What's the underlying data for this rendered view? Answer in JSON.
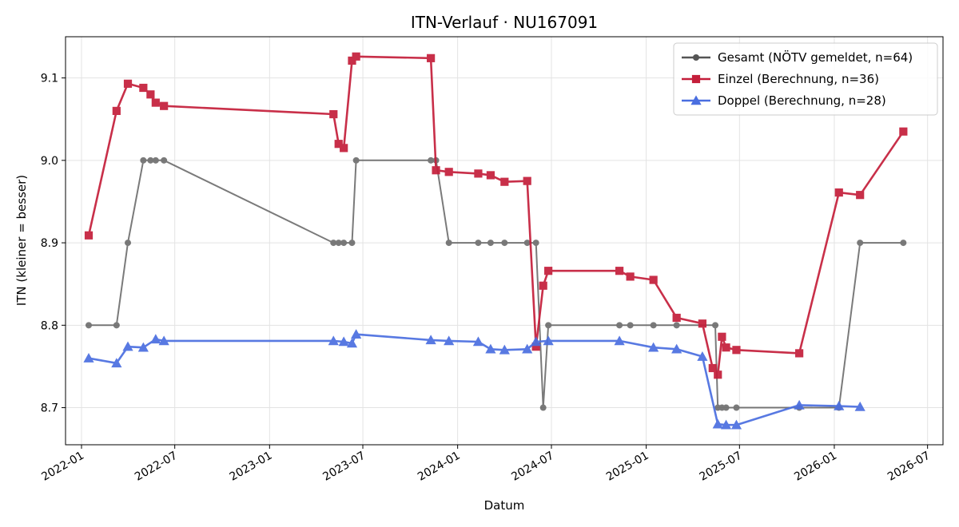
{
  "chart_data": {
    "type": "line",
    "title": "ITN-Verlauf · NU167091",
    "xlabel": "Datum",
    "ylabel": "ITN  (kleiner = besser)",
    "xlim": [
      "2021-12-01",
      "2026-07-31"
    ],
    "ylim": [
      8.655,
      9.15
    ],
    "yticks": [
      8.7,
      8.8,
      8.9,
      9.0,
      9.1
    ],
    "ytick_labels": [
      "8.7",
      "8.8",
      "8.9",
      "9.0",
      "9.1"
    ],
    "xticks": [
      "2022-01-01",
      "2022-07-01",
      "2023-01-01",
      "2023-07-01",
      "2024-01-01",
      "2024-07-01",
      "2025-01-01",
      "2025-07-01",
      "2026-01-01",
      "2026-07-01"
    ],
    "xtick_labels": [
      "2022-01",
      "2022-07",
      "2023-01",
      "2023-07",
      "2024-01",
      "2024-07",
      "2025-01",
      "2025-07",
      "2026-01",
      "2026-07"
    ],
    "grid": true,
    "legend_position": "top-right",
    "series": [
      {
        "name": "Gesamt (NÖTV gemeldet, n=64)",
        "color": "#555555",
        "marker": "circle",
        "points": [
          [
            "2022-01-15",
            8.8
          ],
          [
            "2022-03-10",
            8.8
          ],
          [
            "2022-04-01",
            8.9
          ],
          [
            "2022-05-01",
            9.0
          ],
          [
            "2022-05-15",
            9.0
          ],
          [
            "2022-05-25",
            9.0
          ],
          [
            "2022-06-10",
            9.0
          ],
          [
            "2023-05-05",
            8.9
          ],
          [
            "2023-05-15",
            8.9
          ],
          [
            "2023-05-25",
            8.9
          ],
          [
            "2023-06-10",
            8.9
          ],
          [
            "2023-06-18",
            9.0
          ],
          [
            "2023-11-10",
            9.0
          ],
          [
            "2023-11-20",
            9.0
          ],
          [
            "2023-12-15",
            8.9
          ],
          [
            "2024-02-10",
            8.9
          ],
          [
            "2024-03-05",
            8.9
          ],
          [
            "2024-04-01",
            8.9
          ],
          [
            "2024-05-15",
            8.9
          ],
          [
            "2024-06-01",
            8.9
          ],
          [
            "2024-06-15",
            8.7
          ],
          [
            "2024-06-25",
            8.8
          ],
          [
            "2024-11-10",
            8.8
          ],
          [
            "2024-12-01",
            8.8
          ],
          [
            "2025-01-15",
            8.8
          ],
          [
            "2025-03-01",
            8.8
          ],
          [
            "2025-05-15",
            8.8
          ],
          [
            "2025-05-20",
            8.7
          ],
          [
            "2025-05-28",
            8.7
          ],
          [
            "2025-06-05",
            8.7
          ],
          [
            "2025-06-25",
            8.7
          ],
          [
            "2025-10-25",
            8.7
          ],
          [
            "2026-01-10",
            8.7
          ],
          [
            "2026-02-20",
            8.9
          ],
          [
            "2026-05-15",
            8.9
          ]
        ]
      },
      {
        "name": "Einzel (Berechnung, n=36)",
        "color": "#c41e3a",
        "marker": "square",
        "points": [
          [
            "2022-01-15",
            8.909
          ],
          [
            "2022-03-10",
            9.06
          ],
          [
            "2022-04-01",
            9.093
          ],
          [
            "2022-05-01",
            9.088
          ],
          [
            "2022-05-15",
            9.08
          ],
          [
            "2022-05-25",
            9.07
          ],
          [
            "2022-06-10",
            9.066
          ],
          [
            "2023-05-05",
            9.056
          ],
          [
            "2023-05-15",
            9.02
          ],
          [
            "2023-05-25",
            9.015
          ],
          [
            "2023-06-10",
            9.121
          ],
          [
            "2023-06-18",
            9.126
          ],
          [
            "2023-11-10",
            9.124
          ],
          [
            "2023-11-20",
            8.988
          ],
          [
            "2023-12-15",
            8.986
          ],
          [
            "2024-02-10",
            8.984
          ],
          [
            "2024-03-05",
            8.982
          ],
          [
            "2024-04-01",
            8.974
          ],
          [
            "2024-05-15",
            8.975
          ],
          [
            "2024-06-01",
            8.774
          ],
          [
            "2024-06-15",
            8.848
          ],
          [
            "2024-06-25",
            8.866
          ],
          [
            "2024-11-10",
            8.866
          ],
          [
            "2024-12-01",
            8.859
          ],
          [
            "2025-01-15",
            8.855
          ],
          [
            "2025-03-01",
            8.809
          ],
          [
            "2025-04-20",
            8.802
          ],
          [
            "2025-05-10",
            8.748
          ],
          [
            "2025-05-20",
            8.74
          ],
          [
            "2025-05-28",
            8.786
          ],
          [
            "2025-06-05",
            8.773
          ],
          [
            "2025-06-25",
            8.77
          ],
          [
            "2025-10-25",
            8.766
          ],
          [
            "2026-01-10",
            8.961
          ],
          [
            "2026-02-20",
            8.958
          ],
          [
            "2026-05-15",
            9.035
          ]
        ]
      },
      {
        "name": "Doppel (Berechnung, n=28)",
        "color": "#4a6ee0",
        "marker": "triangle",
        "points": [
          [
            "2022-01-15",
            8.76
          ],
          [
            "2022-03-10",
            8.754
          ],
          [
            "2022-04-01",
            8.774
          ],
          [
            "2022-05-01",
            8.773
          ],
          [
            "2022-05-25",
            8.783
          ],
          [
            "2022-06-10",
            8.781
          ],
          [
            "2023-05-05",
            8.781
          ],
          [
            "2023-05-25",
            8.78
          ],
          [
            "2023-06-10",
            8.778
          ],
          [
            "2023-06-18",
            8.789
          ],
          [
            "2023-11-10",
            8.782
          ],
          [
            "2023-12-15",
            8.781
          ],
          [
            "2024-02-10",
            8.78
          ],
          [
            "2024-03-05",
            8.771
          ],
          [
            "2024-04-01",
            8.77
          ],
          [
            "2024-05-15",
            8.771
          ],
          [
            "2024-06-01",
            8.78
          ],
          [
            "2024-06-25",
            8.781
          ],
          [
            "2024-11-10",
            8.781
          ],
          [
            "2025-01-15",
            8.773
          ],
          [
            "2025-03-01",
            8.771
          ],
          [
            "2025-04-20",
            8.762
          ],
          [
            "2025-05-20",
            8.68
          ],
          [
            "2025-06-05",
            8.679
          ],
          [
            "2025-06-25",
            8.679
          ],
          [
            "2025-10-25",
            8.703
          ],
          [
            "2026-01-10",
            8.702
          ],
          [
            "2026-02-20",
            8.701
          ]
        ]
      }
    ]
  }
}
